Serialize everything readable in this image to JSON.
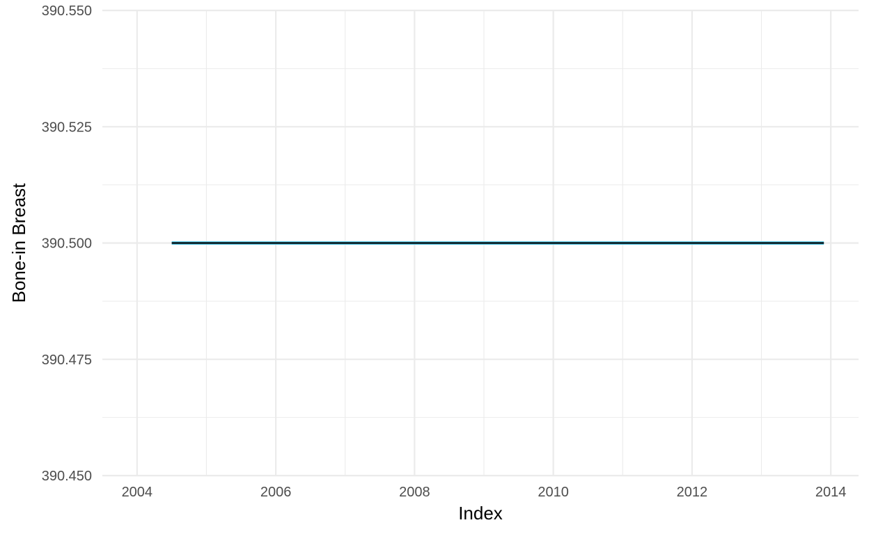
{
  "chart_data": {
    "type": "line",
    "title": "",
    "xlabel": "Index",
    "ylabel": "Bone-in Breast",
    "xlim": [
      2003.5,
      2014.4
    ],
    "ylim": [
      390.45,
      390.55
    ],
    "x_ticks": [
      2004,
      2006,
      2008,
      2010,
      2012,
      2014
    ],
    "x_tick_labels": [
      "2004",
      "2006",
      "2008",
      "2010",
      "2012",
      "2014"
    ],
    "y_ticks": [
      390.45,
      390.475,
      390.5,
      390.525,
      390.55
    ],
    "y_tick_labels": [
      "390.450",
      "390.475",
      "390.500",
      "390.525",
      "390.550"
    ],
    "grid": true,
    "series": [
      {
        "color": "#000000",
        "highlight_color": "#5bc8e6",
        "x": [
          2004.5,
          2013.9
        ],
        "y": [
          390.5,
          390.5
        ]
      }
    ]
  }
}
